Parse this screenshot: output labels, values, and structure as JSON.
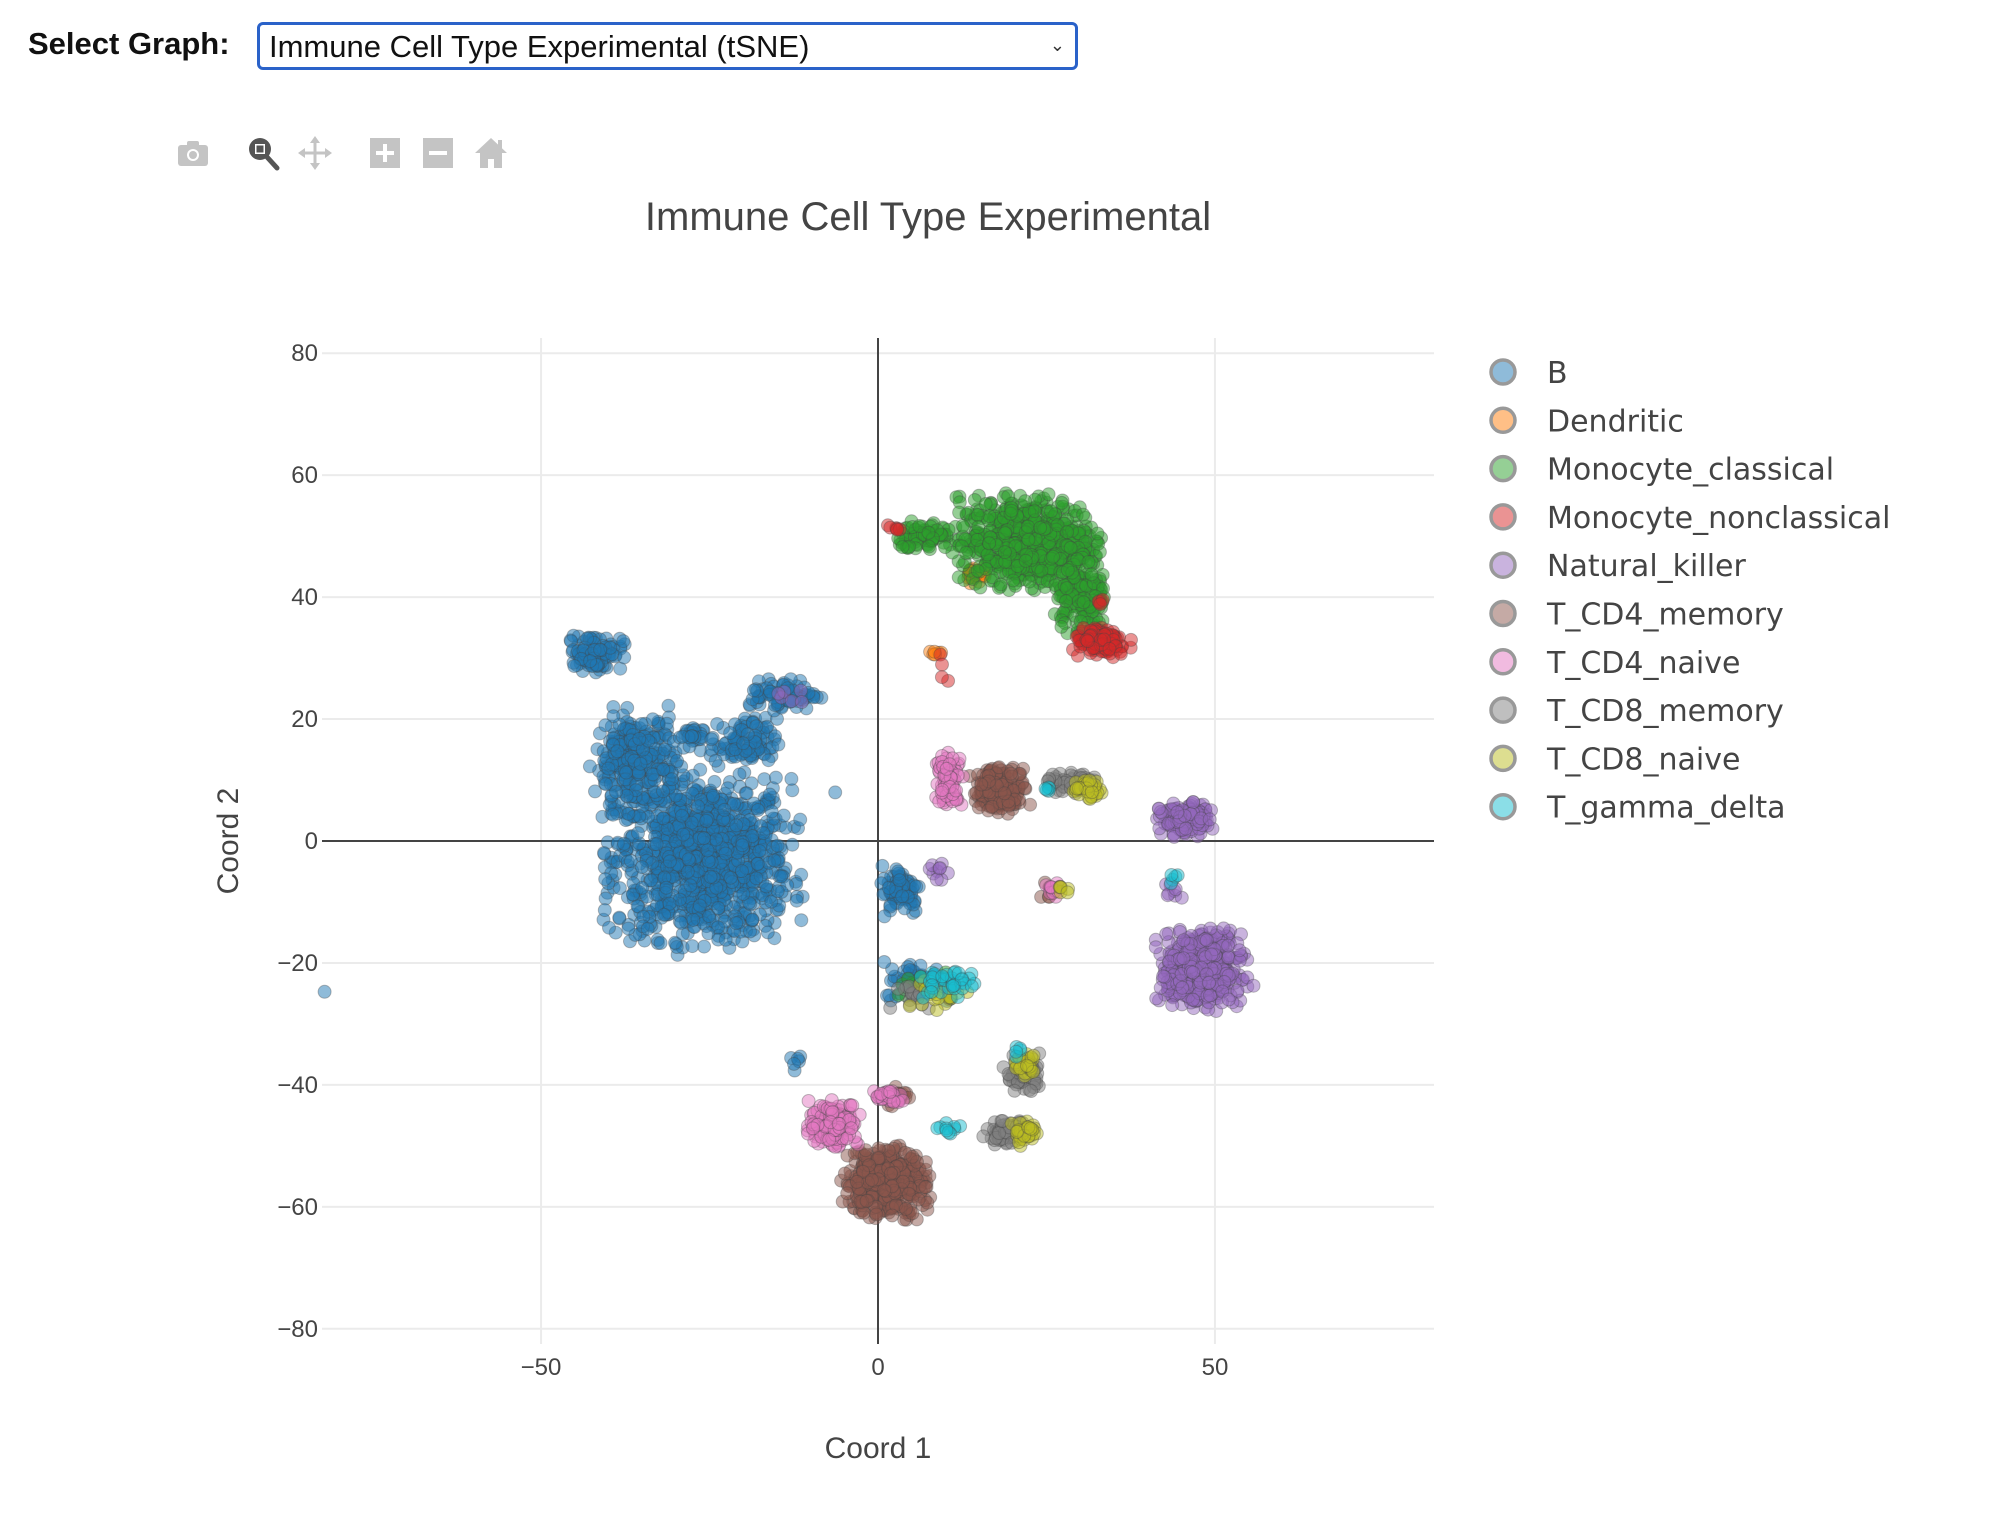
{
  "header": {
    "select_label": "Select Graph:",
    "selected_graph": "Immune Cell Type Experimental (tSNE)"
  },
  "toolbar": {
    "icons": [
      "camera-icon",
      "zoom-icon",
      "pan-icon",
      "zoom-in-icon",
      "zoom-out-icon",
      "home-icon"
    ],
    "active": "zoom-icon"
  },
  "chart_data": {
    "type": "scatter",
    "title": "Immune Cell Type Experimental",
    "xlabel": "Coord 1",
    "ylabel": "Coord 2",
    "xlim": [
      -82.5,
      82.5
    ],
    "ylim": [
      -82.5,
      82.5
    ],
    "xticks": [
      -50,
      0,
      50
    ],
    "yticks": [
      80,
      60,
      40,
      20,
      0,
      -20,
      -40,
      -60,
      -80
    ],
    "xtick_labels": [
      "−50",
      "0",
      "50"
    ],
    "ytick_labels": [
      "80",
      "60",
      "40",
      "20",
      "0",
      "−20",
      "−40",
      "−60",
      "−80"
    ],
    "grid": true,
    "zero_lines": true,
    "legend_position": "right",
    "marker_opacity": 0.5,
    "series": [
      {
        "name": "B",
        "color": "#1f77b4",
        "clusters": [
          {
            "center": [
              -26,
              -3
            ],
            "spread": [
              6.5,
              6.5
            ],
            "n": 1100
          },
          {
            "center": [
              -36,
              13
            ],
            "spread": [
              3,
              4
            ],
            "n": 280
          },
          {
            "center": [
              -42,
              31
            ],
            "spread": [
              2,
              1.5
            ],
            "n": 100
          },
          {
            "center": [
              -28,
              17
            ],
            "spread": [
              1,
              1
            ],
            "n": 30
          },
          {
            "center": [
              -20,
              16
            ],
            "spread": [
              2.5,
              2
            ],
            "n": 100
          },
          {
            "center": [
              -14,
              24
            ],
            "spread": [
              2.5,
              1.2
            ],
            "n": 80
          },
          {
            "center": [
              -6,
              8
            ],
            "spread": [
              0.2,
              0.2
            ],
            "n": 1
          },
          {
            "center": [
              3.5,
              -8
            ],
            "spread": [
              1.5,
              2
            ],
            "n": 80
          },
          {
            "center": [
              6,
              -23
            ],
            "spread": [
              2.5,
              1.5
            ],
            "n": 60
          },
          {
            "center": [
              -12,
              -36
            ],
            "spread": [
              0.6,
              1
            ],
            "n": 6
          },
          {
            "center": [
              -82,
              -25
            ],
            "spread": [
              0.2,
              0.2
            ],
            "n": 1
          }
        ]
      },
      {
        "name": "Dendritic",
        "color": "#ff7f0e",
        "clusters": [
          {
            "center": [
              14.5,
              44
            ],
            "spread": [
              0.8,
              0.8
            ],
            "n": 25
          },
          {
            "center": [
              8.5,
              31
            ],
            "spread": [
              0.6,
              0.6
            ],
            "n": 6
          }
        ]
      },
      {
        "name": "Monocyte_classical",
        "color": "#2ca02c",
        "clusters": [
          {
            "center": [
              22,
              49
            ],
            "spread": [
              5,
              3.5
            ],
            "n": 700
          },
          {
            "center": [
              30,
              40
            ],
            "spread": [
              2,
              3
            ],
            "n": 150
          },
          {
            "center": [
              7,
              50
            ],
            "spread": [
              2,
              1.3
            ],
            "n": 80
          },
          {
            "center": [
              8,
              -24
            ],
            "spread": [
              2.5,
              1.5
            ],
            "n": 15
          }
        ]
      },
      {
        "name": "Monocyte_nonclassical",
        "color": "#d62728",
        "clusters": [
          {
            "center": [
              33,
              32.5
            ],
            "spread": [
              2,
              1.2
            ],
            "n": 120
          },
          {
            "center": [
              2.5,
              51
            ],
            "spread": [
              0.6,
              0.6
            ],
            "n": 6
          },
          {
            "center": [
              10,
              29
            ],
            "spread": [
              0.5,
              1.5
            ],
            "n": 4
          },
          {
            "center": [
              33,
              39
            ],
            "spread": [
              0.3,
              0.5
            ],
            "n": 4
          }
        ]
      },
      {
        "name": "Natural_killer",
        "color": "#9467bd",
        "clusters": [
          {
            "center": [
              48,
              -21
            ],
            "spread": [
              3,
              3
            ],
            "n": 500
          },
          {
            "center": [
              45.5,
              3.5
            ],
            "spread": [
              1.8,
              1.3
            ],
            "n": 150
          },
          {
            "center": [
              9,
              -5
            ],
            "spread": [
              0.8,
              0.6
            ],
            "n": 10
          },
          {
            "center": [
              44,
              -8
            ],
            "spread": [
              0.8,
              1
            ],
            "n": 8
          },
          {
            "center": [
              -13,
              24
            ],
            "spread": [
              1.5,
              0.6
            ],
            "n": 6
          }
        ]
      },
      {
        "name": "T_CD4_memory",
        "color": "#8c564b",
        "clusters": [
          {
            "center": [
              18,
              8.5
            ],
            "spread": [
              2,
              1.8
            ],
            "n": 180
          },
          {
            "center": [
              1,
              -56
            ],
            "spread": [
              3,
              2.8
            ],
            "n": 400
          },
          {
            "center": [
              2.5,
              -42
            ],
            "spread": [
              1,
              0.8
            ],
            "n": 30
          },
          {
            "center": [
              25.5,
              -8
            ],
            "spread": [
              0.8,
              0.8
            ],
            "n": 8
          }
        ]
      },
      {
        "name": "T_CD4_naive",
        "color": "#e377c2",
        "clusters": [
          {
            "center": [
              10.5,
              10
            ],
            "spread": [
              1,
              2
            ],
            "n": 80
          },
          {
            "center": [
              -6.5,
              -46.5
            ],
            "spread": [
              1.8,
              1.8
            ],
            "n": 180
          },
          {
            "center": [
              1.5,
              -42
            ],
            "spread": [
              1,
              0.6
            ],
            "n": 30
          },
          {
            "center": [
              26,
              -8
            ],
            "spread": [
              0.8,
              0.8
            ],
            "n": 12
          }
        ]
      },
      {
        "name": "T_CD8_memory",
        "color": "#7f7f7f",
        "clusters": [
          {
            "center": [
              29,
              9.5
            ],
            "spread": [
              2,
              0.8
            ],
            "n": 60
          },
          {
            "center": [
              21.5,
              -38
            ],
            "spread": [
              1.3,
              1.5
            ],
            "n": 60
          },
          {
            "center": [
              19,
              -48
            ],
            "spread": [
              1.5,
              1
            ],
            "n": 60
          },
          {
            "center": [
              6,
              -25
            ],
            "spread": [
              2,
              1.2
            ],
            "n": 25
          }
        ]
      },
      {
        "name": "T_CD8_naive",
        "color": "#bcbd22",
        "clusters": [
          {
            "center": [
              31,
              8.5
            ],
            "spread": [
              1.2,
              0.8
            ],
            "n": 40
          },
          {
            "center": [
              22,
              -37
            ],
            "spread": [
              0.9,
              0.9
            ],
            "n": 30
          },
          {
            "center": [
              22,
              -48
            ],
            "spread": [
              1,
              1
            ],
            "n": 40
          },
          {
            "center": [
              9,
              -25
            ],
            "spread": [
              2,
              1.2
            ],
            "n": 20
          },
          {
            "center": [
              27.5,
              -8
            ],
            "spread": [
              0.6,
              0.6
            ],
            "n": 6
          }
        ]
      },
      {
        "name": "T_gamma_delta",
        "color": "#17becf",
        "clusters": [
          {
            "center": [
              25,
              8.5
            ],
            "spread": [
              0.6,
              0.4
            ],
            "n": 5
          },
          {
            "center": [
              10,
              -23.5
            ],
            "spread": [
              2,
              1.2
            ],
            "n": 40
          },
          {
            "center": [
              10,
              -47
            ],
            "spread": [
              1.2,
              0.6
            ],
            "n": 10
          },
          {
            "center": [
              21,
              -34.5
            ],
            "spread": [
              0.6,
              0.5
            ],
            "n": 5
          },
          {
            "center": [
              44,
              -6
            ],
            "spread": [
              0.5,
              0.5
            ],
            "n": 5
          }
        ]
      }
    ]
  }
}
